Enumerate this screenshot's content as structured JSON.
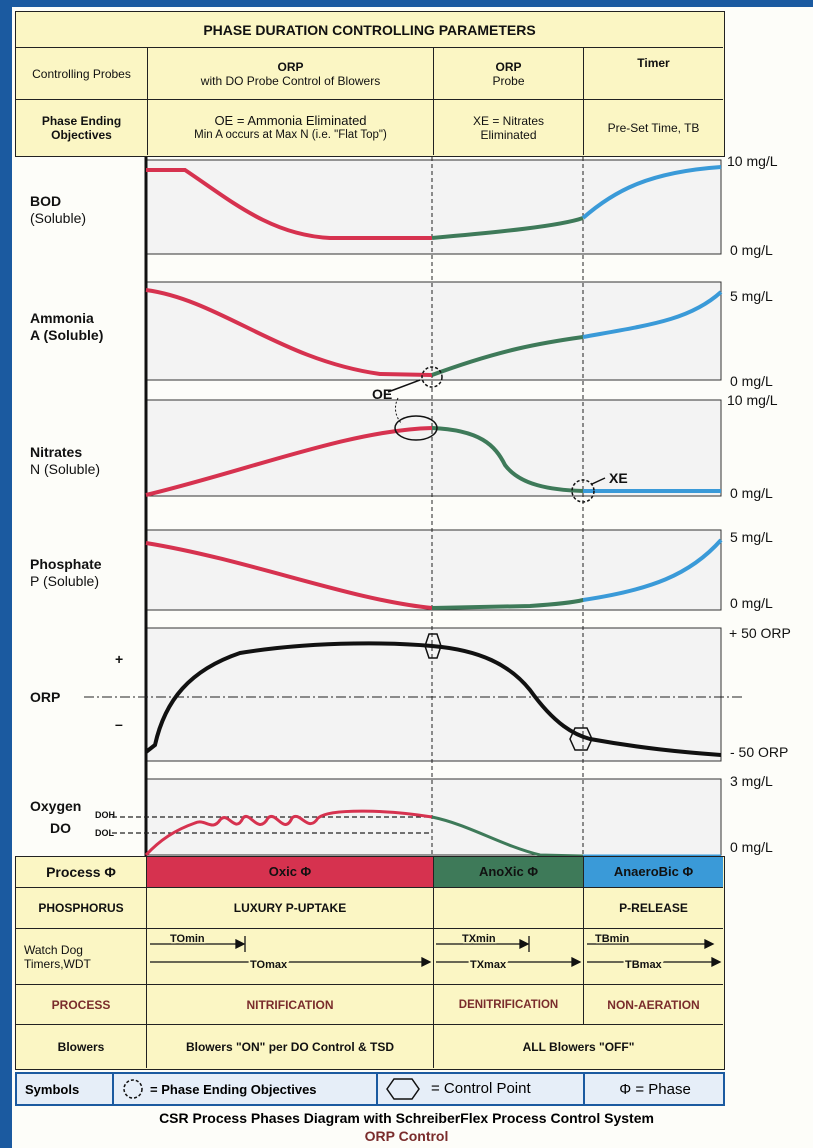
{
  "header": {
    "title": "PHASE DURATION CONTROLLING PARAMETERS",
    "row1": {
      "label": "Controlling Probes",
      "col1_title": "ORP",
      "col1_sub": "with DO Probe Control of Blowers",
      "col2_title": "ORP",
      "col2_sub": "Probe",
      "col3_title": "Timer"
    },
    "row2": {
      "label": "Phase Ending Objectives",
      "col1_line1": "OE = Ammonia Eliminated",
      "col1_line2": "Min A occurs at Max N (i.e. \"Flat Top\")",
      "col2_line1": "XE = Nitrates",
      "col2_line2": "Eliminated",
      "col3": "Pre-Set Time, TB"
    }
  },
  "panels": {
    "bod": {
      "name": "BOD",
      "sub": "(Soluble)",
      "max": "10 mg/L",
      "min": "0 mg/L"
    },
    "ammonia": {
      "name": "Ammonia",
      "sub": "A (Soluble)",
      "max": "5 mg/L",
      "min": "0 mg/L",
      "marker": "OE"
    },
    "nitrates": {
      "name": "Nitrates",
      "sub": "N (Soluble)",
      "max": "10 mg/L",
      "min": "0 mg/L",
      "marker": "XE"
    },
    "phosphate": {
      "name": "Phosphate",
      "sub": "P (Soluble)",
      "max": "5 mg/L",
      "min": "0 mg/L"
    },
    "orp": {
      "name": "ORP",
      "plus": "+",
      "minus": "–",
      "max": "+ 50 ORP",
      "min": "- 50 ORP"
    },
    "oxygen": {
      "name": "Oxygen",
      "sub": "DO",
      "doh": "DOH",
      "dol": "DOL",
      "max": "3 mg/L",
      "min": "0 mg/L"
    }
  },
  "bottom": {
    "process_label": "Process Φ",
    "oxic": "Oxic Φ",
    "anoxic": "AnoXic Φ",
    "anaerobic": "AnaeroBic Φ",
    "phosphorus_label": "PHOSPHORUS",
    "luxury": "LUXURY P-UPTAKE",
    "release": "P-RELEASE",
    "wdt_label": "Watch Dog Timers,WDT",
    "t_omin": "TOmin",
    "t_omax": "TOmax",
    "t_xmin": "TXmin",
    "t_xmax": "TXmax",
    "t_bmin": "TBmin",
    "t_bmax": "TBmax",
    "process2_label": "PROCESS",
    "nitrification": "NITRIFICATION",
    "denitrification": "DENITRIFICATION",
    "nonaeration": "NON-AERATION",
    "blowers_label": "Blowers",
    "blowers_on": "Blowers \"ON\" per DO Control & TSD",
    "blowers_off": "ALL Blowers \"OFF\""
  },
  "symbols": {
    "label": "Symbols",
    "phase_end": "= Phase Ending Objectives",
    "control": "= Control Point",
    "phase": "Φ = Phase"
  },
  "caption": {
    "line1": "CSR Process Phases Diagram with SchreiberFlex Process Control System",
    "line2": "ORP Control"
  },
  "colors": {
    "oxic": "#d6324f",
    "anoxic": "#3e7a59",
    "anaerobic": "#3a9ad8",
    "frame": "#1b5aa0",
    "table_bg": "#fbf6c4"
  }
}
